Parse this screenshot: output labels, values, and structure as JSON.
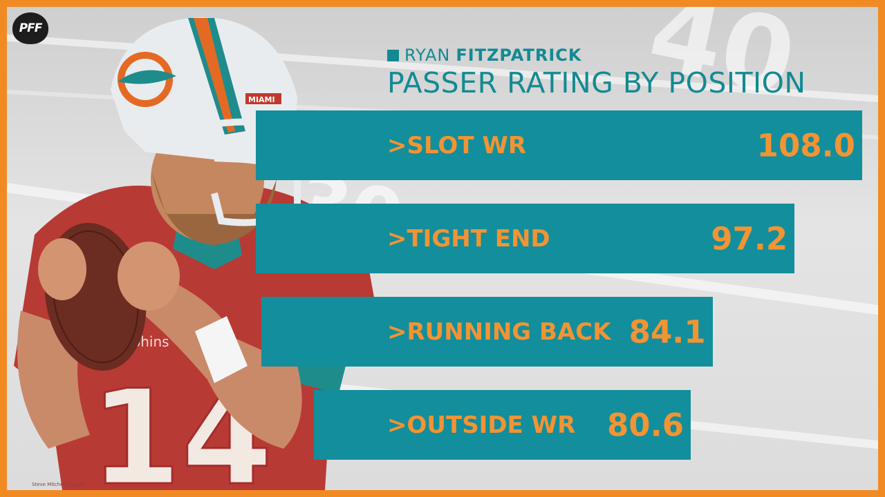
{
  "brand": {
    "logo_text": "PFF"
  },
  "chart_data": {
    "type": "bar",
    "orientation": "horizontal",
    "player_first": "RYAN",
    "player_last": "FITZPATRICK",
    "title": "PASSER RATING BY POSITION",
    "categories": [
      ">SLOT WR",
      ">TIGHT END",
      ">RUNNING BACK",
      ">OUTSIDE WR"
    ],
    "values": [
      108.0,
      97.2,
      84.1,
      80.6
    ],
    "value_labels": [
      "108.0",
      "97.2",
      "84.1",
      "80.6"
    ],
    "xlim": [
      0,
      115
    ]
  },
  "photo": {
    "jersey_number": "14",
    "jersey_text": "lphins",
    "helmet_text": "MIAMI",
    "credit": "Steve Mitchell Images"
  },
  "colors": {
    "border": "#f28a24",
    "bar": "#138e9c",
    "bar_text": "#f29433",
    "title": "#138a93"
  }
}
